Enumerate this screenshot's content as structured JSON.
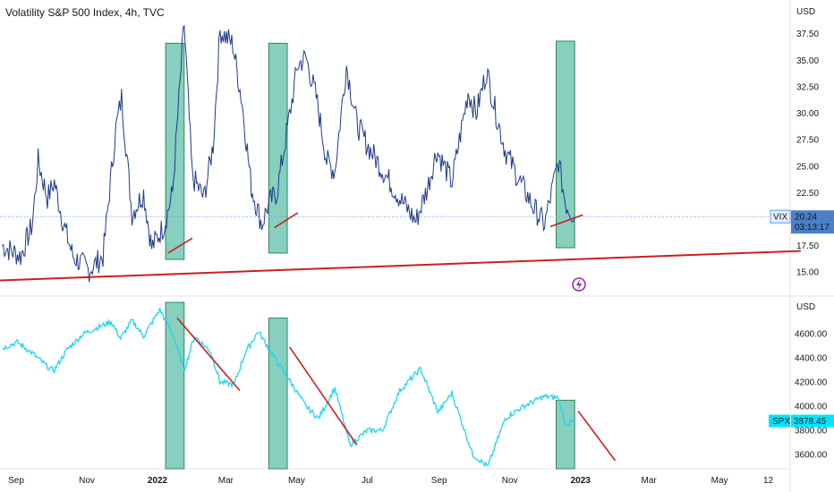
{
  "header": {
    "title": "Volatility S&P 500 Index, 4h, TVC"
  },
  "chart_data": [
    {
      "type": "line",
      "name": "VIX",
      "unit": "USD",
      "ylim": [
        13.5,
        39.5
      ],
      "y_ticks": [
        "15.00",
        "17.50",
        "20.00",
        "22.50",
        "25.00",
        "27.50",
        "30.00",
        "32.50",
        "35.00",
        "37.50"
      ],
      "last_value": "20.24",
      "countdown": "03:13:17",
      "color": "#1e3a8a",
      "points": [
        [
          "2021-08-20",
          17.5
        ],
        [
          "2021-09-05",
          16.5
        ],
        [
          "2021-09-15",
          19.5
        ],
        [
          "2021-09-20",
          25.5
        ],
        [
          "2021-09-28",
          22.0
        ],
        [
          "2021-10-04",
          23.5
        ],
        [
          "2021-10-12",
          19.5
        ],
        [
          "2021-10-20",
          16.5
        ],
        [
          "2021-11-03",
          15.2
        ],
        [
          "2021-11-15",
          16.5
        ],
        [
          "2021-11-26",
          28.5
        ],
        [
          "2021-12-01",
          31.5
        ],
        [
          "2021-12-10",
          20.5
        ],
        [
          "2021-12-20",
          22.5
        ],
        [
          "2021-12-27",
          17.3
        ],
        [
          "2022-01-07",
          19.5
        ],
        [
          "2022-01-14",
          22.5
        ],
        [
          "2022-01-24",
          38.5
        ],
        [
          "2022-01-31",
          24.0
        ],
        [
          "2022-02-10",
          22.0
        ],
        [
          "2022-02-18",
          27.0
        ],
        [
          "2022-02-24",
          37.8
        ],
        [
          "2022-03-07",
          36.5
        ],
        [
          "2022-03-15",
          31.0
        ],
        [
          "2022-03-23",
          23.0
        ],
        [
          "2022-04-01",
          19.5
        ],
        [
          "2022-04-07",
          21.5
        ],
        [
          "2022-04-14",
          22.5
        ],
        [
          "2022-04-26",
          30.5
        ],
        [
          "2022-05-02",
          34.5
        ],
        [
          "2022-05-09",
          35.3
        ],
        [
          "2022-05-18",
          31.5
        ],
        [
          "2022-05-27",
          25.5
        ],
        [
          "2022-06-03",
          24.5
        ],
        [
          "2022-06-13",
          34.5
        ],
        [
          "2022-06-22",
          29.0
        ],
        [
          "2022-07-01",
          27.0
        ],
        [
          "2022-07-15",
          24.5
        ],
        [
          "2022-07-29",
          22.0
        ],
        [
          "2022-08-12",
          19.8
        ],
        [
          "2022-08-22",
          23.0
        ],
        [
          "2022-08-30",
          26.5
        ],
        [
          "2022-09-12",
          23.5
        ],
        [
          "2022-09-26",
          32.0
        ],
        [
          "2022-10-03",
          30.0
        ],
        [
          "2022-10-12",
          34.0
        ],
        [
          "2022-10-20",
          30.0
        ],
        [
          "2022-10-28",
          26.5
        ],
        [
          "2022-11-10",
          23.5
        ],
        [
          "2022-11-22",
          21.0
        ],
        [
          "2022-12-01",
          19.5
        ],
        [
          "2022-12-07",
          22.5
        ],
        [
          "2022-12-13",
          25.5
        ],
        [
          "2022-12-19",
          21.5
        ],
        [
          "2022-12-27",
          20.24
        ]
      ]
    },
    {
      "type": "line",
      "name": "SPX",
      "unit": "USD",
      "ylim": [
        3520,
        4860
      ],
      "y_ticks": [
        "3600.00",
        "3800.00",
        "4000.00",
        "4200.00",
        "4400.00",
        "4600.00"
      ],
      "last_value": "3878.45",
      "color": "#22d3ee",
      "points": [
        [
          "2021-08-20",
          4480
        ],
        [
          "2021-09-02",
          4530
        ],
        [
          "2021-09-15",
          4440
        ],
        [
          "2021-09-30",
          4310
        ],
        [
          "2021-10-04",
          4300
        ],
        [
          "2021-10-15",
          4470
        ],
        [
          "2021-10-29",
          4600
        ],
        [
          "2021-11-10",
          4650
        ],
        [
          "2021-11-22",
          4700
        ],
        [
          "2021-11-30",
          4560
        ],
        [
          "2021-12-10",
          4710
        ],
        [
          "2021-12-20",
          4580
        ],
        [
          "2022-01-03",
          4800
        ],
        [
          "2022-01-14",
          4600
        ],
        [
          "2022-01-24",
          4300
        ],
        [
          "2022-02-02",
          4580
        ],
        [
          "2022-02-16",
          4450
        ],
        [
          "2022-02-24",
          4200
        ],
        [
          "2022-03-08",
          4180
        ],
        [
          "2022-03-18",
          4450
        ],
        [
          "2022-03-29",
          4620
        ],
        [
          "2022-04-12",
          4400
        ],
        [
          "2022-04-26",
          4200
        ],
        [
          "2022-05-09",
          4000
        ],
        [
          "2022-05-20",
          3900
        ],
        [
          "2022-06-03",
          4150
        ],
        [
          "2022-06-16",
          3680
        ],
        [
          "2022-07-01",
          3800
        ],
        [
          "2022-07-14",
          3800
        ],
        [
          "2022-07-29",
          4130
        ],
        [
          "2022-08-16",
          4310
        ],
        [
          "2022-08-31",
          3950
        ],
        [
          "2022-09-12",
          4110
        ],
        [
          "2022-09-30",
          3600
        ],
        [
          "2022-10-13",
          3500
        ],
        [
          "2022-10-28",
          3900
        ],
        [
          "2022-11-11",
          3990
        ],
        [
          "2022-11-30",
          4080
        ],
        [
          "2022-12-13",
          4070
        ],
        [
          "2022-12-19",
          3850
        ],
        [
          "2022-12-27",
          3878.45
        ]
      ]
    }
  ],
  "x_axis": {
    "labels": [
      {
        "text": "Sep",
        "date": "2021-09-01",
        "bold": false
      },
      {
        "text": "Nov",
        "date": "2021-11-01",
        "bold": false
      },
      {
        "text": "2022",
        "date": "2022-01-01",
        "bold": true
      },
      {
        "text": "Mar",
        "date": "2022-03-01",
        "bold": false
      },
      {
        "text": "May",
        "date": "2022-05-01",
        "bold": false
      },
      {
        "text": "Jul",
        "date": "2022-07-01",
        "bold": false
      },
      {
        "text": "Sep",
        "date": "2022-09-01",
        "bold": false
      },
      {
        "text": "Nov",
        "date": "2022-11-01",
        "bold": false
      },
      {
        "text": "2023",
        "date": "2023-01-01",
        "bold": true
      },
      {
        "text": "Mar",
        "date": "2023-03-01",
        "bold": false
      },
      {
        "text": "May",
        "date": "2023-05-01",
        "bold": false
      },
      {
        "text": "12",
        "date": "2023-06-12",
        "bold": false
      }
    ]
  },
  "annotations": {
    "highlight_color": "#5fbfa8",
    "trend_color": "#cc1f1f",
    "highlight_boxes": [
      {
        "x0": "2022-01-08",
        "x1": "2022-01-24",
        "vix": [
          16.2,
          36.6
        ],
        "spx": [
          3520,
          4860
        ]
      },
      {
        "x0": "2022-04-07",
        "x1": "2022-04-23",
        "vix": [
          16.8,
          36.6
        ],
        "spx": [
          3520,
          4730
        ]
      },
      {
        "x0": "2022-12-11",
        "x1": "2022-12-27",
        "vix": [
          17.3,
          36.8
        ],
        "spx": [
          3520,
          4050
        ]
      }
    ],
    "vix_trendlines": [
      {
        "from": [
          "2022-01-10",
          16.8
        ],
        "to": [
          "2022-01-31",
          18.2
        ]
      },
      {
        "from": [
          "2022-04-12",
          19.2
        ],
        "to": [
          "2022-05-02",
          20.6
        ]
      },
      {
        "from": [
          "2022-12-06",
          19.3
        ],
        "to": [
          "2023-01-03",
          20.4
        ]
      },
      {
        "from": [
          "2021-07-20",
          14.1
        ],
        "to": [
          "2023-07-10",
          17.0
        ]
      }
    ],
    "spx_trendlines": [
      {
        "from": [
          "2022-01-18",
          4730
        ],
        "to": [
          "2022-03-13",
          4130
        ]
      },
      {
        "from": [
          "2022-04-25",
          4490
        ],
        "to": [
          "2022-06-22",
          3680
        ]
      },
      {
        "from": [
          "2022-12-30",
          3960
        ],
        "to": [
          "2023-01-31",
          3550
        ]
      }
    ]
  }
}
